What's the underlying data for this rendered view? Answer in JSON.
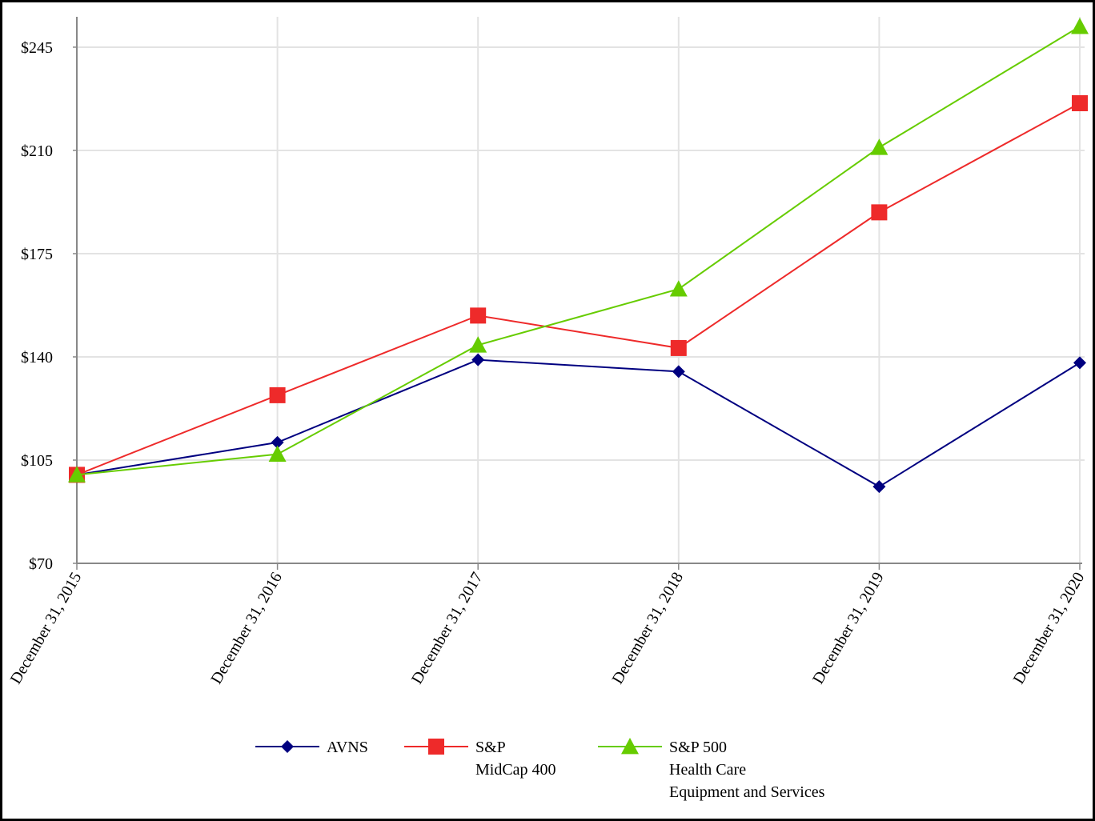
{
  "chart_data": {
    "type": "line",
    "title": "",
    "xlabel": "",
    "ylabel": "",
    "categories": [
      "December 31, 2015",
      "December 31, 2016",
      "December 31, 2017",
      "December 31, 2018",
      "December 31, 2019",
      "December 31, 2020"
    ],
    "y_ticks": [
      {
        "value": 70,
        "label": "$70"
      },
      {
        "value": 105,
        "label": "$105"
      },
      {
        "value": 140,
        "label": "$140"
      },
      {
        "value": 175,
        "label": "$175"
      },
      {
        "value": 210,
        "label": "$210"
      },
      {
        "value": 245,
        "label": "$245"
      }
    ],
    "ylim": [
      70,
      255
    ],
    "grid": true,
    "legend_position": "bottom-center",
    "series": [
      {
        "name": "AVNS",
        "legend_lines": [
          "AVNS"
        ],
        "color": "#000080",
        "marker": "diamond",
        "values": [
          100,
          111,
          139,
          135,
          96,
          138
        ]
      },
      {
        "name": "S&P MidCap 400",
        "legend_lines": [
          "S&P",
          "MidCap 400"
        ],
        "color": "#ee2a2a",
        "marker": "square",
        "values": [
          100,
          127,
          154,
          143,
          189,
          226
        ]
      },
      {
        "name": "S&P 500 Health Care Equipment and Services",
        "legend_lines": [
          "S&P 500",
          "Health Care",
          "Equipment and Services"
        ],
        "color": "#66cc00",
        "marker": "triangle",
        "values": [
          100,
          107,
          144,
          163,
          211,
          252
        ]
      }
    ]
  }
}
